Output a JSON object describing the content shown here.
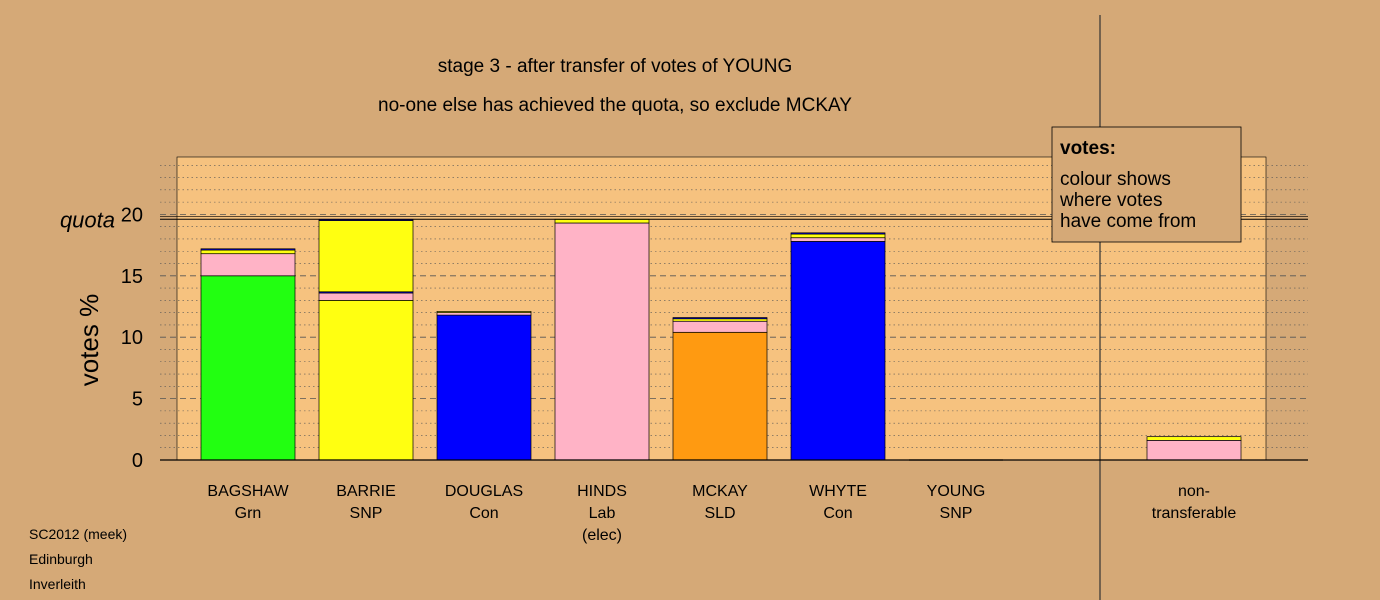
{
  "colors": {
    "background": "#d5a977",
    "plot_panel": "#f6c27f",
    "Grn": "#22ff11",
    "SNP": "#ffff11",
    "Con": "#0000ff",
    "Lab": "#ffb3c6",
    "SLD": "#ff9a11"
  },
  "chart_data": {
    "type": "bar",
    "stacked": true,
    "title": "stage 3 - after transfer of votes of YOUNG",
    "subtitle": "no-one else has achieved the quota, so exclude MCKAY",
    "ylabel": "votes %",
    "ylim": [
      0,
      25
    ],
    "yticks": [
      0,
      5,
      10,
      15,
      20
    ],
    "quota": 19.6,
    "quota_label": "quota",
    "candidates": [
      {
        "name": "BAGSHAW",
        "party": "Grn",
        "segments": [
          {
            "from": "Grn",
            "value": 15.0
          },
          {
            "from": "Lab",
            "value": 1.8
          },
          {
            "from": "SNP",
            "value": 0.3
          },
          {
            "from": "Con",
            "value": 0.1
          }
        ]
      },
      {
        "name": "BARRIE",
        "party": "SNP",
        "segments": [
          {
            "from": "SNP",
            "value": 13.0
          },
          {
            "from": "Lab",
            "value": 0.6
          },
          {
            "from": "Con",
            "value": 0.1
          },
          {
            "from": "SNP",
            "value": 5.8
          },
          {
            "from": "Con",
            "value": 0.1
          }
        ]
      },
      {
        "name": "DOUGLAS",
        "party": "Con",
        "segments": [
          {
            "from": "Con",
            "value": 11.8
          },
          {
            "from": "Lab",
            "value": 0.2
          },
          {
            "from": "SNP",
            "value": 0.1
          }
        ]
      },
      {
        "name": "HINDS",
        "party": "Lab",
        "note": "(elec)",
        "segments": [
          {
            "from": "Lab",
            "value": 19.3
          },
          {
            "from": "SNP",
            "value": 0.3
          }
        ]
      },
      {
        "name": "MCKAY",
        "party": "SLD",
        "segments": [
          {
            "from": "SLD",
            "value": 10.4
          },
          {
            "from": "Lab",
            "value": 0.9
          },
          {
            "from": "SNP",
            "value": 0.2
          },
          {
            "from": "Con",
            "value": 0.1
          }
        ]
      },
      {
        "name": "WHYTE",
        "party": "Con",
        "segments": [
          {
            "from": "Con",
            "value": 17.8
          },
          {
            "from": "Lab",
            "value": 0.3
          },
          {
            "from": "SNP",
            "value": 0.3
          },
          {
            "from": "Con",
            "value": 0.1
          }
        ]
      },
      {
        "name": "YOUNG",
        "party": "SNP",
        "segments": []
      }
    ],
    "nontransferable": {
      "label_line1": "non-",
      "label_line2": "transferable",
      "segments": [
        {
          "from": "Lab",
          "value": 1.6
        },
        {
          "from": "SNP",
          "value": 0.3
        }
      ]
    },
    "legend": {
      "title": "votes:",
      "lines": [
        "colour shows",
        "where votes",
        "have come from"
      ],
      "position": "top-right"
    }
  },
  "footer": {
    "line1": "SC2012 (meek)",
    "line2": "Edinburgh",
    "line3": "Inverleith"
  }
}
